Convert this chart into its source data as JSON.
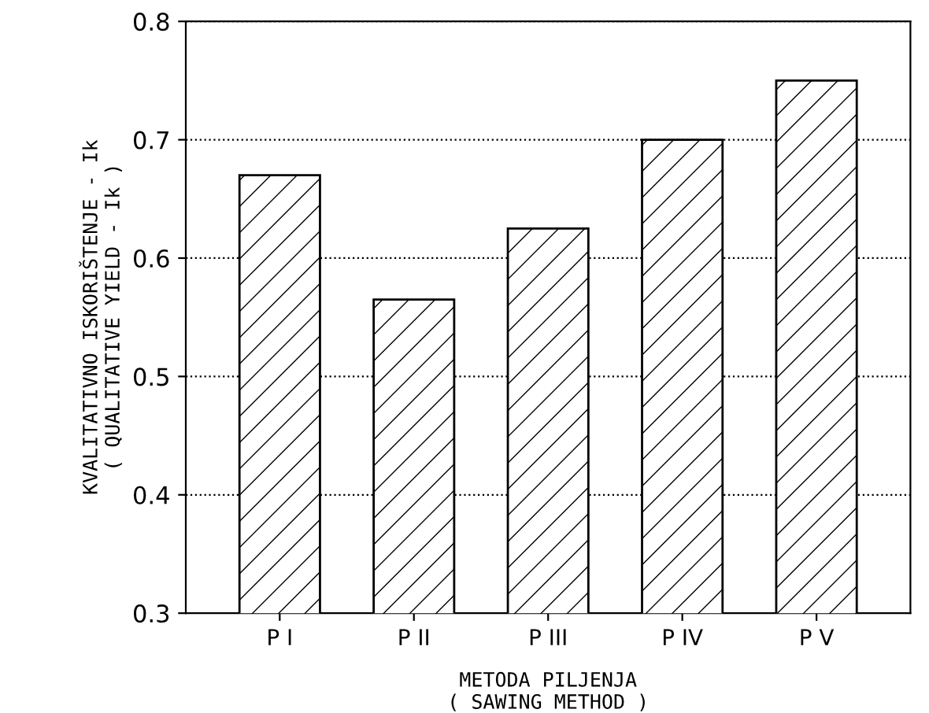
{
  "chart_data": {
    "type": "bar",
    "categories": [
      "P I",
      "P II",
      "P III",
      "P IV",
      "P V"
    ],
    "values": [
      0.67,
      0.565,
      0.625,
      0.7,
      0.75
    ],
    "xlabel": "METODA PILJENJA\n( SAWING METHOD )",
    "ylabel": "KVALITATIVNO ISKORIŠTENJE - Ik\n( QUALITATIVE YIELD - Ik )",
    "ylim": [
      0.3,
      0.8
    ],
    "yticks": [
      0.3,
      0.4,
      0.5,
      0.6,
      0.7,
      0.8
    ],
    "grid": "y"
  }
}
